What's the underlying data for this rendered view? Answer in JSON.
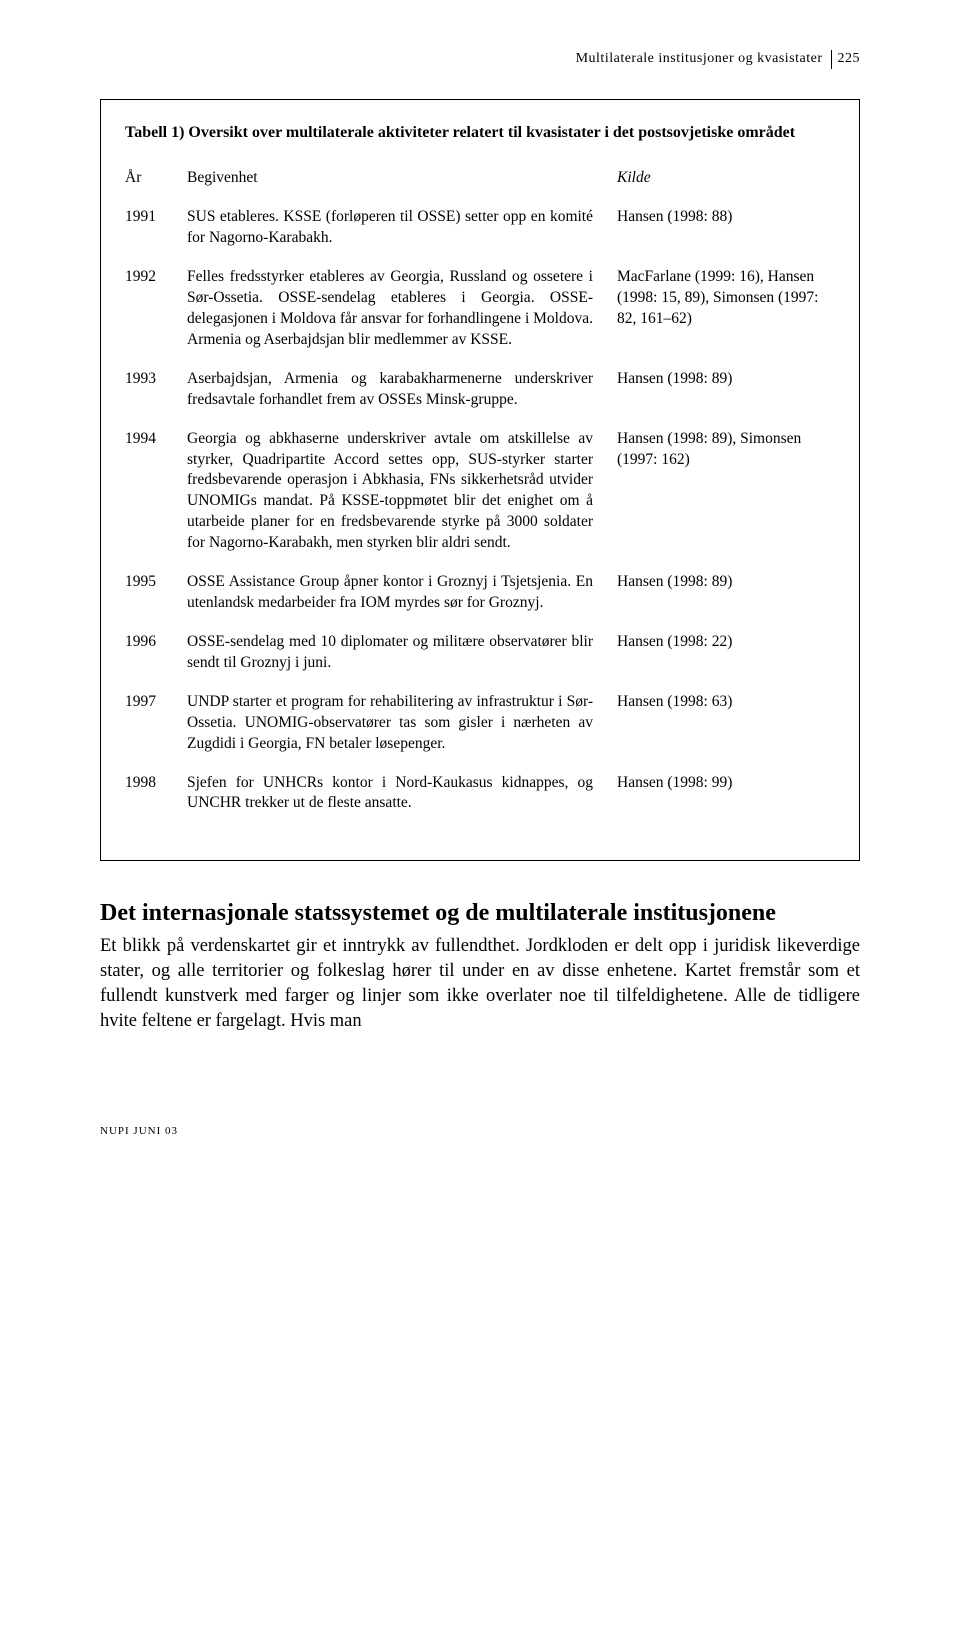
{
  "header": {
    "running_title": "Multilaterale institusjoner og kvasistater",
    "page_number": "225"
  },
  "table": {
    "title": "Tabell 1) Oversikt over multilaterale aktiviteter relatert til kvasistater i det postsovjetiske området",
    "head": {
      "year": "År",
      "event": "Begivenhet",
      "source": "Kilde"
    },
    "rows": [
      {
        "year": "1991",
        "event": "SUS etableres. KSSE (forløperen til OSSE) setter opp en komité for Nagorno-Karabakh.",
        "source": "Hansen (1998: 88)"
      },
      {
        "year": "1992",
        "event": "Felles fredsstyrker etableres av Georgia, Russland og ossetere i Sør-Ossetia. OSSE-sendelag etableres i Georgia. OSSE-delegasjonen i Moldova får ansvar for forhandlingene i Moldova. Armenia og Aserbajdsjan blir medlemmer av KSSE.",
        "source": "MacFarlane (1999: 16), Hansen (1998: 15, 89), Simonsen (1997: 82, 161–62)"
      },
      {
        "year": "1993",
        "event": "Aserbajdsjan, Armenia og karabakharmenerne underskriver fredsavtale forhandlet frem av OSSEs Minsk-gruppe.",
        "source": "Hansen (1998: 89)"
      },
      {
        "year": "1994",
        "event": "Georgia og abkhaserne underskriver avtale om atskillelse av styrker, Quadripartite Accord settes opp, SUS-styrker starter fredsbevarende operasjon i Abkhasia, FNs sikkerhetsråd utvider UNOMIGs mandat. På KSSE-toppmøtet blir det enighet om å utarbeide planer for en fredsbevarende styrke på 3000 soldater for Nagorno-Karabakh, men styrken blir aldri sendt.",
        "source": "Hansen (1998: 89), Simonsen (1997: 162)"
      },
      {
        "year": "1995",
        "event": "OSSE Assistance Group åpner kontor i Groznyj i Tsjetsjenia. En utenlandsk medarbeider fra IOM myrdes sør for Groznyj.",
        "source": "Hansen (1998: 89)"
      },
      {
        "year": "1996",
        "event": "OSSE-sendelag med 10 diplomater og militære observatører blir sendt til Groznyj i juni.",
        "source": "Hansen (1998: 22)"
      },
      {
        "year": "1997",
        "event": "UNDP starter et program for rehabilitering av infrastruktur i Sør-Ossetia. UNOMIG-observatører tas som gisler i nærheten av Zugdidi i Georgia, FN betaler løsepenger.",
        "source": "Hansen (1998: 63)"
      },
      {
        "year": "1998",
        "event": "Sjefen for UNHCRs kontor i Nord-Kaukasus kidnappes, og UNCHR trekker ut de fleste ansatte.",
        "source": "Hansen (1998: 99)"
      }
    ]
  },
  "body": {
    "heading": "Det internasjonale statssystemet og de multilaterale institusjonene",
    "paragraph": "Et blikk på verdenskartet gir et inntrykk av fullendthet. Jordkloden er delt opp i juridisk likeverdige stater, og alle territorier og folkeslag hører til under en av disse enhetene. Kartet fremstår som et fullendt kunstverk med farger og linjer som ikke overlater noe til tilfeldighetene. Alle de tidligere hvite feltene er fargelagt. Hvis man"
  },
  "footer": {
    "text": "NUPI  JUNI  03"
  }
}
